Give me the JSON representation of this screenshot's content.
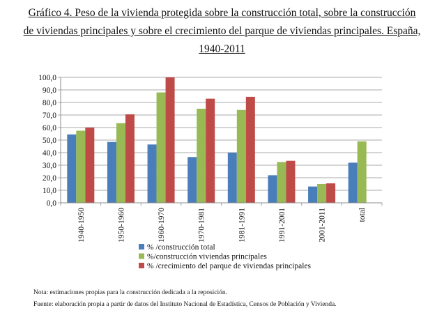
{
  "title_lines": [
    "Gráfico 4. Peso de la vivienda protegida sobre la construcción total, sobre la construcción",
    "de viviendas principales y sobre el crecimiento del parque de viviendas principales. España,",
    "1940-2011"
  ],
  "notes": {
    "nota": "Nota: estimaciones propias para la construcción dedicada a la reposición.",
    "fuente": "Fuente: elaboración propia a partir de datos del Instituto Nacional de Estadística, Censos de Población y Vivienda."
  },
  "chart_data": {
    "type": "bar",
    "categories": [
      "1940-1950",
      "1950-1960",
      "1960-1970",
      "1970-1981",
      "1981-1991",
      "1991-2001",
      "2001-2011",
      "total"
    ],
    "ylim": [
      0,
      100
    ],
    "yticks": [
      "0,0",
      "10,0",
      "20,0",
      "30,0",
      "40,0",
      "50,0",
      "60,0",
      "70,0",
      "80,0",
      "90,0",
      "100,0"
    ],
    "grid": true,
    "series": [
      {
        "name": "% /construcción total",
        "color": "#4a7ebb",
        "values": [
          54.5,
          48.5,
          46.5,
          36.5,
          40.0,
          22.0,
          13.0,
          32.0
        ]
      },
      {
        "name": "%/construcción viviendas principales",
        "color": "#98b954",
        "values": [
          57.5,
          63.5,
          88.0,
          75.0,
          74.0,
          32.5,
          15.0,
          49.0
        ]
      },
      {
        "name": "% /crecimiento del parque de viviendas principales",
        "color": "#be4b48",
        "values": [
          60.0,
          70.5,
          100.0,
          83.0,
          84.5,
          33.5,
          15.5,
          0
        ]
      }
    ]
  }
}
